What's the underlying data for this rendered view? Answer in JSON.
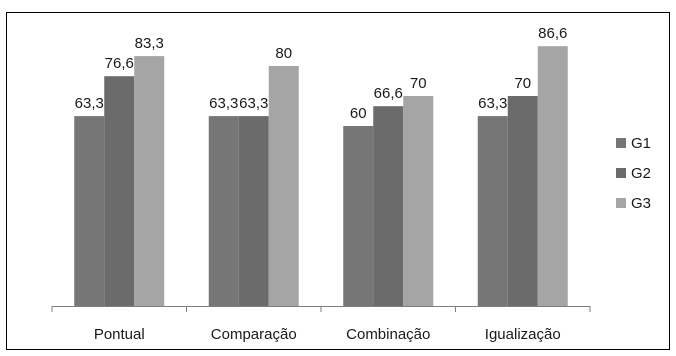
{
  "chart_data": {
    "type": "bar",
    "categories": [
      "Pontual",
      "Comparação",
      "Combinação",
      "Igualização"
    ],
    "series": [
      {
        "name": "G1",
        "values": [
          63.3,
          63.3,
          60,
          63.3
        ],
        "labels": [
          "63,3",
          "63,3",
          "60",
          "63,3"
        ],
        "color": "#767676"
      },
      {
        "name": "G2",
        "values": [
          76.6,
          63.3,
          66.6,
          70
        ],
        "labels": [
          "76,6",
          "63,3",
          "66,6",
          "70"
        ],
        "color": "#6b6b6b"
      },
      {
        "name": "G3",
        "values": [
          83.3,
          80,
          70,
          86.6
        ],
        "labels": [
          "83,3",
          "80",
          "70",
          "86,6"
        ],
        "color": "#a5a5a5"
      }
    ],
    "ylim": [
      0,
      100
    ],
    "grid": false,
    "legend": "right",
    "title": "",
    "xlabel": "",
    "ylabel": ""
  }
}
